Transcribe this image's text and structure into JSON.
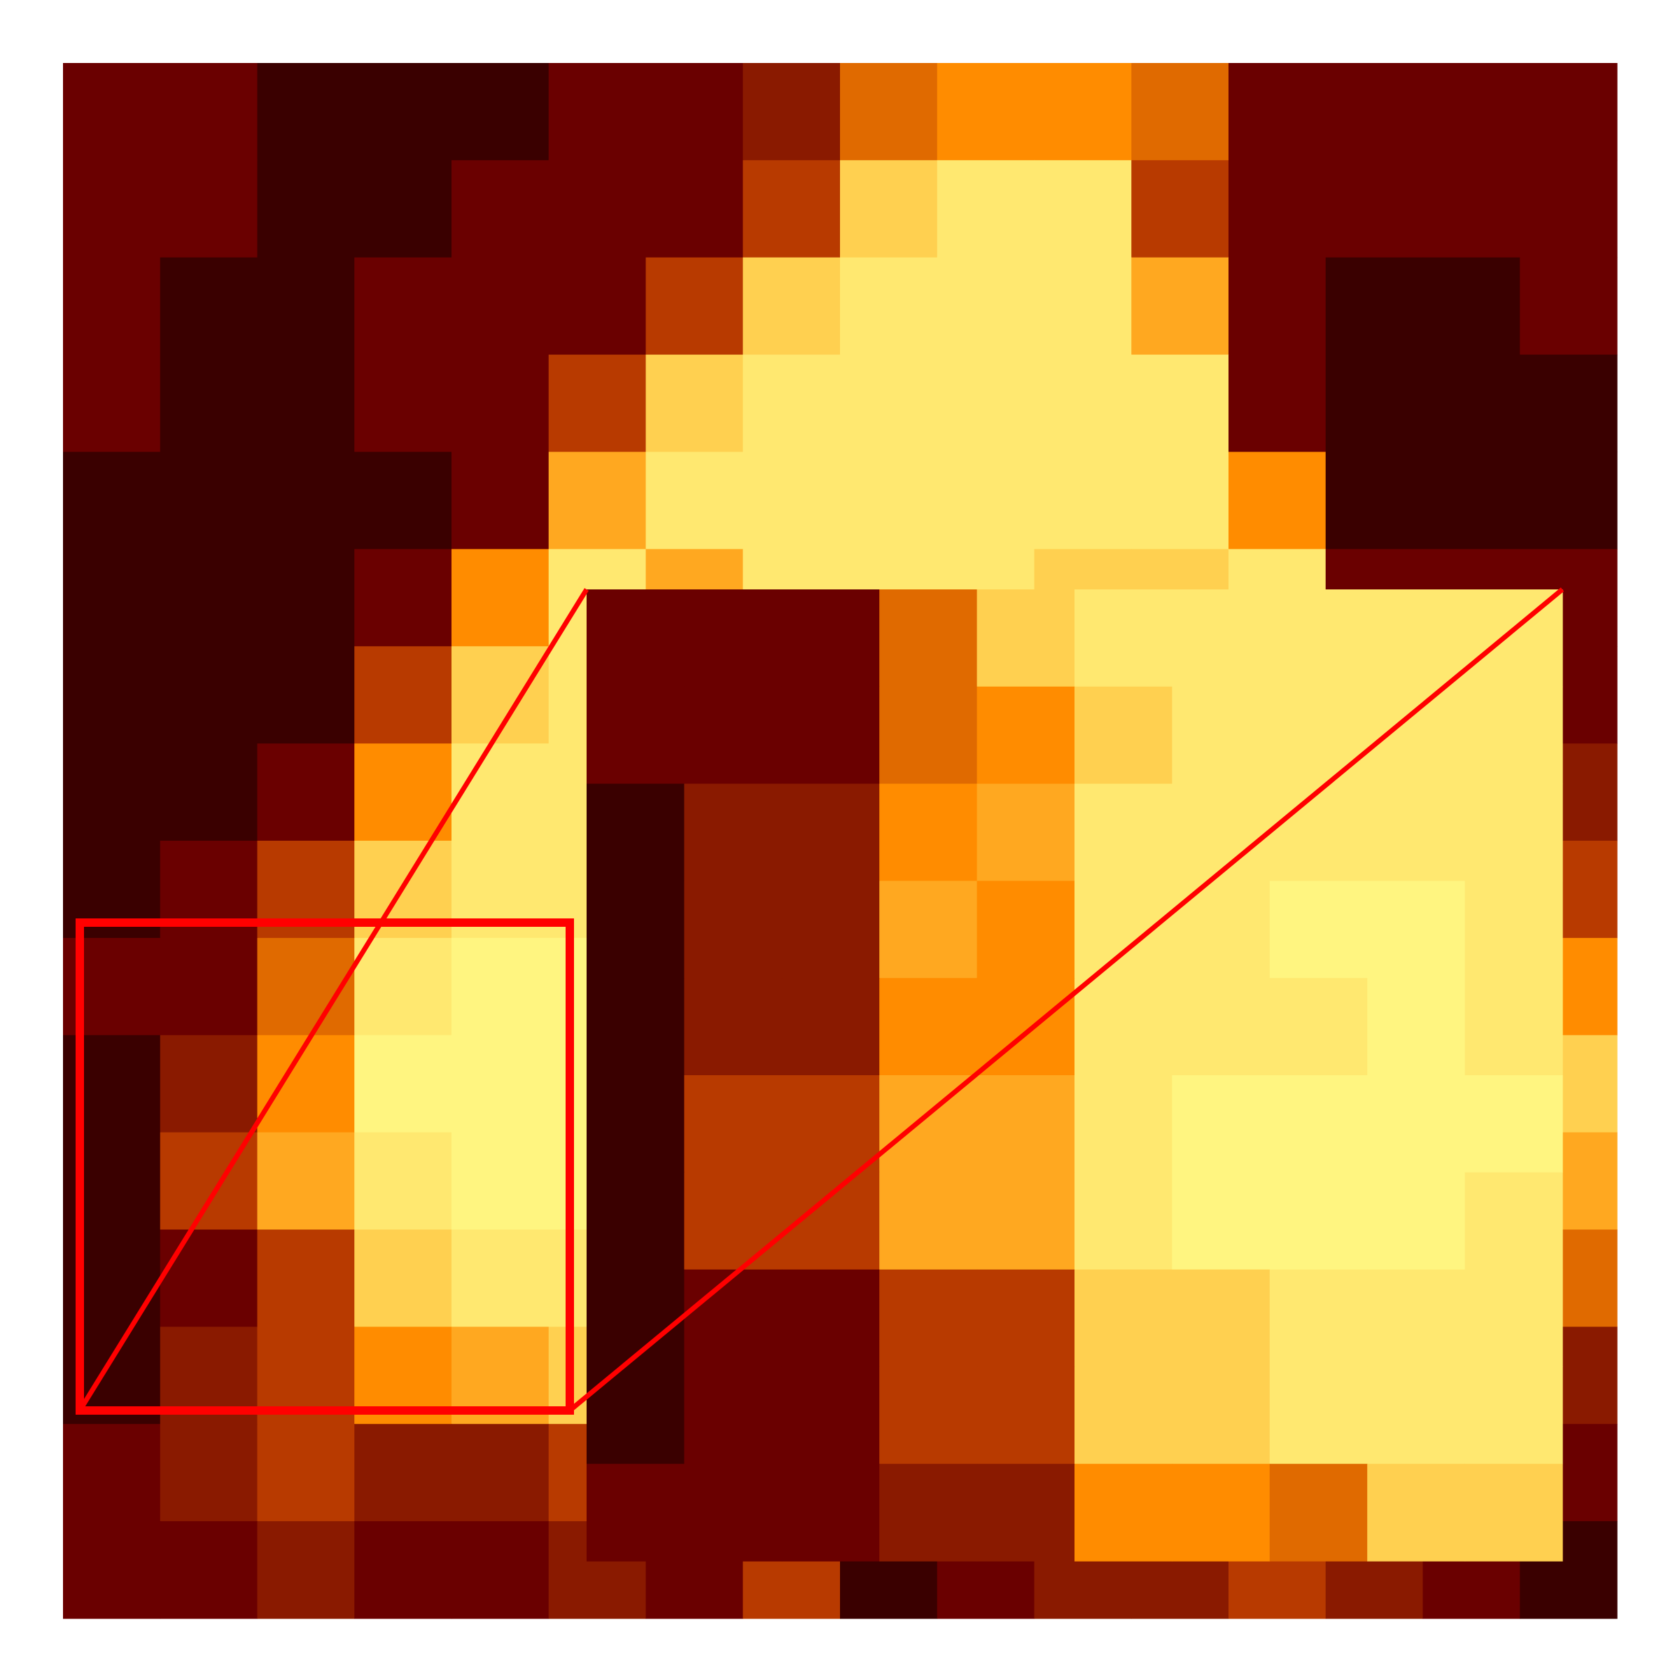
{
  "image": {
    "kind": "heatmap-with-zoom-inset",
    "colormap": "hot",
    "grid_rows": 16,
    "grid_cols": 16,
    "main_grid": [
      [
        1,
        1,
        0,
        0,
        0,
        1,
        1,
        2,
        4,
        5,
        5,
        4,
        1,
        1,
        1,
        1
      ],
      [
        1,
        1,
        0,
        0,
        1,
        1,
        1,
        3,
        7,
        8,
        8,
        3,
        1,
        1,
        1,
        1
      ],
      [
        1,
        0,
        0,
        1,
        1,
        1,
        3,
        7,
        8,
        8,
        8,
        6,
        1,
        0,
        0,
        1
      ],
      [
        1,
        0,
        0,
        1,
        1,
        3,
        7,
        8,
        8,
        8,
        8,
        8,
        1,
        0,
        0,
        0
      ],
      [
        0,
        0,
        0,
        0,
        1,
        6,
        8,
        8,
        8,
        8,
        8,
        8,
        5,
        0,
        0,
        0
      ],
      [
        0,
        0,
        0,
        1,
        5,
        8,
        6,
        8,
        8,
        8,
        7,
        7,
        8,
        1,
        1,
        1
      ],
      [
        0,
        0,
        0,
        3,
        7,
        8,
        5,
        6,
        8,
        8,
        8,
        7,
        8,
        7,
        2,
        1
      ],
      [
        0,
        0,
        1,
        5,
        8,
        8,
        3,
        6,
        8,
        8,
        8,
        8,
        7,
        8,
        4,
        2
      ],
      [
        0,
        1,
        3,
        7,
        8,
        8,
        1,
        2,
        7,
        8,
        8,
        8,
        8,
        7,
        6,
        3
      ],
      [
        1,
        1,
        4,
        8,
        9,
        9,
        1,
        3,
        5,
        8,
        8,
        7,
        6,
        5,
        8,
        5
      ],
      [
        0,
        2,
        5,
        9,
        9,
        9,
        0,
        2,
        5,
        8,
        8,
        8,
        5,
        4,
        8,
        7
      ],
      [
        0,
        3,
        6,
        8,
        9,
        9,
        0,
        2,
        6,
        8,
        9,
        8,
        5,
        5,
        7,
        6
      ],
      [
        0,
        1,
        3,
        7,
        8,
        8,
        0,
        1,
        4,
        8,
        8,
        7,
        5,
        4,
        7,
        4
      ],
      [
        0,
        2,
        3,
        5,
        6,
        7,
        0,
        1,
        3,
        4,
        6,
        5,
        3,
        3,
        6,
        2
      ],
      [
        1,
        2,
        3,
        2,
        2,
        3,
        1,
        1,
        2,
        3,
        4,
        4,
        3,
        4,
        5,
        1
      ],
      [
        1,
        1,
        2,
        1,
        1,
        2,
        1,
        3,
        0,
        1,
        2,
        2,
        3,
        2,
        1,
        0
      ]
    ],
    "inset_grid": [
      [
        1,
        1,
        1,
        4,
        7,
        8,
        8,
        8,
        8,
        8
      ],
      [
        1,
        1,
        1,
        4,
        5,
        7,
        8,
        8,
        8,
        8
      ],
      [
        0,
        2,
        2,
        5,
        6,
        8,
        8,
        8,
        8,
        8
      ],
      [
        0,
        2,
        2,
        6,
        5,
        8,
        8,
        9,
        9,
        8
      ],
      [
        0,
        2,
        2,
        5,
        5,
        8,
        8,
        8,
        9,
        8
      ],
      [
        0,
        3,
        3,
        6,
        6,
        8,
        9,
        9,
        9,
        9
      ],
      [
        0,
        3,
        3,
        6,
        6,
        8,
        9,
        9,
        9,
        8
      ],
      [
        0,
        1,
        1,
        3,
        3,
        7,
        7,
        8,
        8,
        8
      ],
      [
        0,
        1,
        1,
        3,
        3,
        7,
        7,
        8,
        8,
        8
      ],
      [
        1,
        1,
        1,
        2,
        2,
        5,
        5,
        4,
        7,
        7
      ]
    ],
    "highlight_box_color": "#ff0000",
    "connector_color": "#ff0000",
    "background_color": "#ffffff"
  }
}
